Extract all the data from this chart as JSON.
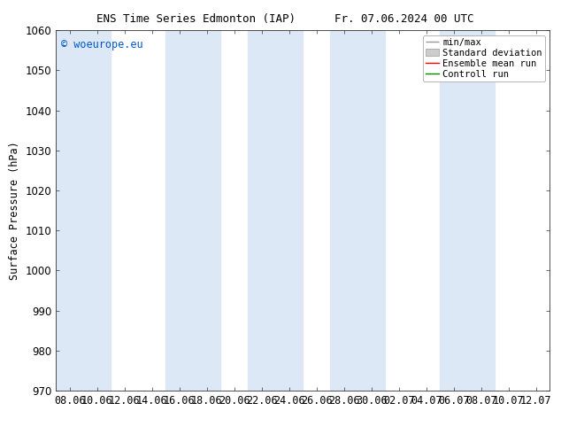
{
  "title_left": "ENS Time Series Edmonton (IAP)",
  "title_right": "Fr. 07.06.2024 00 UTC",
  "ylabel": "Surface Pressure (hPa)",
  "ylim": [
    970,
    1060
  ],
  "yticks": [
    970,
    980,
    990,
    1000,
    1010,
    1020,
    1030,
    1040,
    1050,
    1060
  ],
  "x_tick_labels": [
    "08.06",
    "10.06",
    "12.06",
    "14.06",
    "16.06",
    "18.06",
    "20.06",
    "22.06",
    "24.06",
    "26.06",
    "28.06",
    "30.06",
    "02.07",
    "04.07",
    "06.07",
    "08.07",
    "10.07",
    "12.07"
  ],
  "watermark": "© woeurope.eu",
  "watermark_color": "#0055cc",
  "bg_color": "#ffffff",
  "plot_bg_color": "#ffffff",
  "band_color": "#dce8f5",
  "band_indices": [
    0,
    1,
    4,
    5,
    7,
    8,
    10,
    11,
    14,
    15
  ],
  "legend_items": [
    "min/max",
    "Standard deviation",
    "Ensemble mean run",
    "Controll run"
  ],
  "legend_colors_line": [
    "#999999",
    "#bbbbbb",
    "#ff0000",
    "#008800"
  ],
  "font_family": "DejaVu Sans Mono",
  "font_size": 8.5,
  "title_font_size": 9
}
